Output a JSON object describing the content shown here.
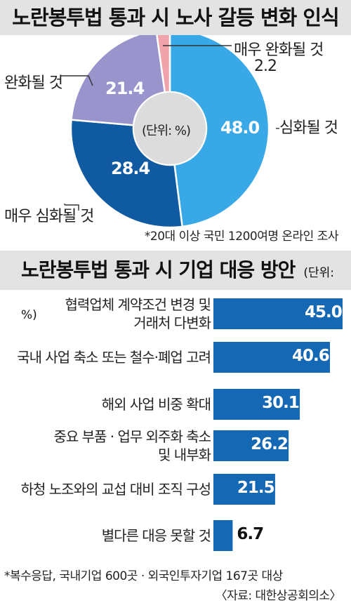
{
  "colors": {
    "header_bg": "#e3e3e3",
    "slice_severe": "#38a8e6",
    "slice_very_severe": "#0f5aa0",
    "slice_ease": "#9a94cc",
    "slice_very_ease": "#f0a3aa",
    "bar": "#1468b4"
  },
  "chart_data": [
    {
      "type": "pie",
      "title": "노란봉투법 통과 시 노사 갈등 변화 인식",
      "center_label": "(단위: %)",
      "slices": [
        {
          "label": "심화될 것",
          "value": 48.0,
          "display": "48.0"
        },
        {
          "label": "매우 심화될 것",
          "value": 28.4,
          "display": "28.4"
        },
        {
          "label": "완화될 것",
          "value": 21.4,
          "display": "21.4"
        },
        {
          "label": "매우 완화될 것",
          "value": 2.2,
          "display": "2.2"
        }
      ],
      "note": "*20대 이상 국민 1200여명 온라인 조사"
    },
    {
      "type": "bar",
      "title": "노란봉투법 통과 시 기업 대응 방안",
      "unit": "(단위: %)",
      "categories": [
        [
          "협력업체 계약조건 변경 및",
          "거래처 다변화"
        ],
        [
          "국내 사업 축소 또는 철수·폐업 고려"
        ],
        [
          "해외 사업 비중 확대"
        ],
        [
          "중요 부품 · 업무 외주화 축소",
          "및 내부화"
        ],
        [
          "하청 노조와의 교섭 대비 조직 구성"
        ],
        [
          "별다른 대응 못할 것"
        ]
      ],
      "values": [
        45.0,
        40.6,
        30.1,
        26.2,
        21.5,
        6.7
      ],
      "value_labels": [
        "45.0",
        "40.6",
        "30.1",
        "26.2",
        "21.5",
        "6.7"
      ],
      "xlim": [
        0,
        45.0
      ]
    }
  ],
  "footnotes": {
    "line1": "*복수응답, 국내기업 600곳 · 외국인투자기업 167곳 대상",
    "line2": "〈자료: 대한상공회의소〉"
  }
}
